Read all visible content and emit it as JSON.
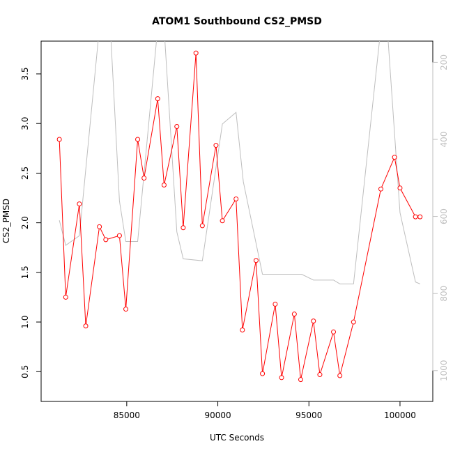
{
  "chart_data": {
    "type": "line",
    "title": "ATOM1 Southbound CS2_PMSD",
    "xlabel": "UTC Seconds",
    "ylabel": "CS2_PMSD",
    "xlim": [
      80300,
      101800
    ],
    "ylim": [
      0.2,
      3.83
    ],
    "x_ticks": [
      85000,
      90000,
      95000,
      100000
    ],
    "y_ticks": [
      0.5,
      1.0,
      1.5,
      2.0,
      2.5,
      3.0,
      3.5
    ],
    "y2_scale": "reversed",
    "y2lim": [
      1080,
      145
    ],
    "y2_ticks": [
      200,
      400,
      600,
      800,
      1000
    ],
    "grid": false,
    "colors": {
      "primary": "#ff0000",
      "secondary": "#bebebe",
      "axis": "#000000"
    },
    "series": [
      {
        "axis": "left",
        "style": "line+points",
        "color": "#ff0000",
        "x": [
          81300,
          81650,
          82400,
          82750,
          83500,
          83850,
          84600,
          84950,
          85600,
          85950,
          86700,
          87050,
          87750,
          88100,
          88800,
          89150,
          89900,
          90250,
          91000,
          91350,
          92100,
          92450,
          93150,
          93500,
          94200,
          94550,
          95250,
          95600,
          96350,
          96700,
          97450,
          98950,
          99700,
          100000,
          100850,
          101100
        ],
        "y": [
          2.84,
          1.25,
          2.19,
          0.96,
          1.96,
          1.83,
          1.87,
          1.13,
          2.84,
          2.45,
          3.25,
          2.38,
          2.97,
          1.95,
          3.71,
          1.97,
          2.78,
          2.02,
          2.24,
          0.92,
          1.62,
          0.48,
          1.18,
          0.44,
          1.08,
          0.42,
          1.01,
          0.47,
          0.9,
          0.46,
          1.0,
          2.34,
          2.66,
          2.35,
          2.06,
          2.06
        ]
      },
      {
        "axis": "right",
        "style": "line",
        "color": "#bebebe",
        "x": [
          81300,
          81650,
          82400,
          83500,
          84100,
          84600,
          84950,
          85600,
          86700,
          87050,
          87750,
          88100,
          89150,
          90250,
          91000,
          91400,
          92450,
          94600,
          95250,
          96350,
          96700,
          97450,
          98950,
          99300,
          100000,
          100850,
          101100
        ],
        "y": [
          610,
          675,
          650,
          110,
          110,
          560,
          665,
          665,
          110,
          110,
          640,
          710,
          715,
          360,
          330,
          510,
          750,
          750,
          765,
          765,
          775,
          775,
          110,
          110,
          590,
          770,
          775
        ]
      }
    ]
  }
}
